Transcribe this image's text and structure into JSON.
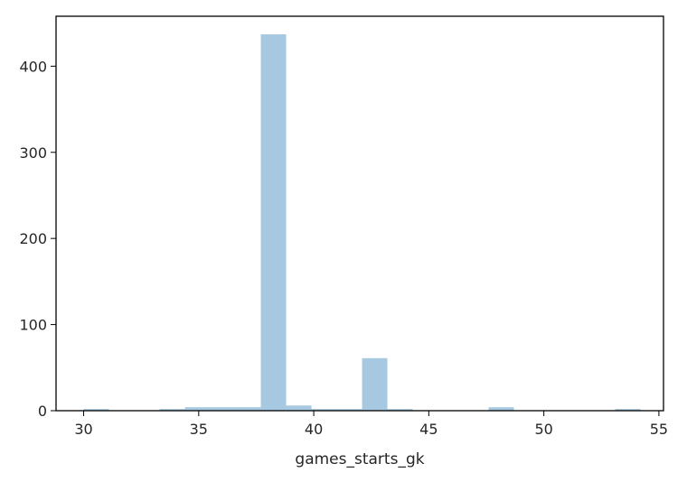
{
  "chart_data": {
    "type": "bar",
    "title": "",
    "xlabel": "games_starts_gk",
    "ylabel": "",
    "xlim": [
      28.8,
      55.2
    ],
    "ylim": [
      0,
      458
    ],
    "grid": false,
    "bar_color": "#a6c8e0",
    "x_ticks": [
      30,
      35,
      40,
      45,
      50,
      55
    ],
    "y_ticks": [
      0,
      100,
      200,
      300,
      400
    ],
    "bins": [
      {
        "x0": 30.0,
        "x1": 31.1,
        "count": 2
      },
      {
        "x0": 31.1,
        "x1": 32.2,
        "count": 0
      },
      {
        "x0": 32.2,
        "x1": 33.3,
        "count": 0
      },
      {
        "x0": 33.3,
        "x1": 34.4,
        "count": 2
      },
      {
        "x0": 34.4,
        "x1": 35.5,
        "count": 4
      },
      {
        "x0": 35.5,
        "x1": 36.6,
        "count": 4
      },
      {
        "x0": 36.6,
        "x1": 37.7,
        "count": 4
      },
      {
        "x0": 37.7,
        "x1": 38.8,
        "count": 437
      },
      {
        "x0": 38.8,
        "x1": 39.9,
        "count": 6
      },
      {
        "x0": 39.9,
        "x1": 41.0,
        "count": 2
      },
      {
        "x0": 41.0,
        "x1": 42.1,
        "count": 2
      },
      {
        "x0": 42.1,
        "x1": 43.2,
        "count": 61
      },
      {
        "x0": 43.2,
        "x1": 44.3,
        "count": 2
      },
      {
        "x0": 44.3,
        "x1": 45.4,
        "count": 0
      },
      {
        "x0": 45.4,
        "x1": 46.5,
        "count": 0
      },
      {
        "x0": 46.5,
        "x1": 47.6,
        "count": 0
      },
      {
        "x0": 47.6,
        "x1": 48.7,
        "count": 4
      },
      {
        "x0": 48.7,
        "x1": 49.8,
        "count": 0
      },
      {
        "x0": 49.8,
        "x1": 50.9,
        "count": 0
      },
      {
        "x0": 50.9,
        "x1": 52.0,
        "count": 0
      },
      {
        "x0": 52.0,
        "x1": 53.1,
        "count": 0
      },
      {
        "x0": 53.1,
        "x1": 54.2,
        "count": 2
      }
    ]
  }
}
